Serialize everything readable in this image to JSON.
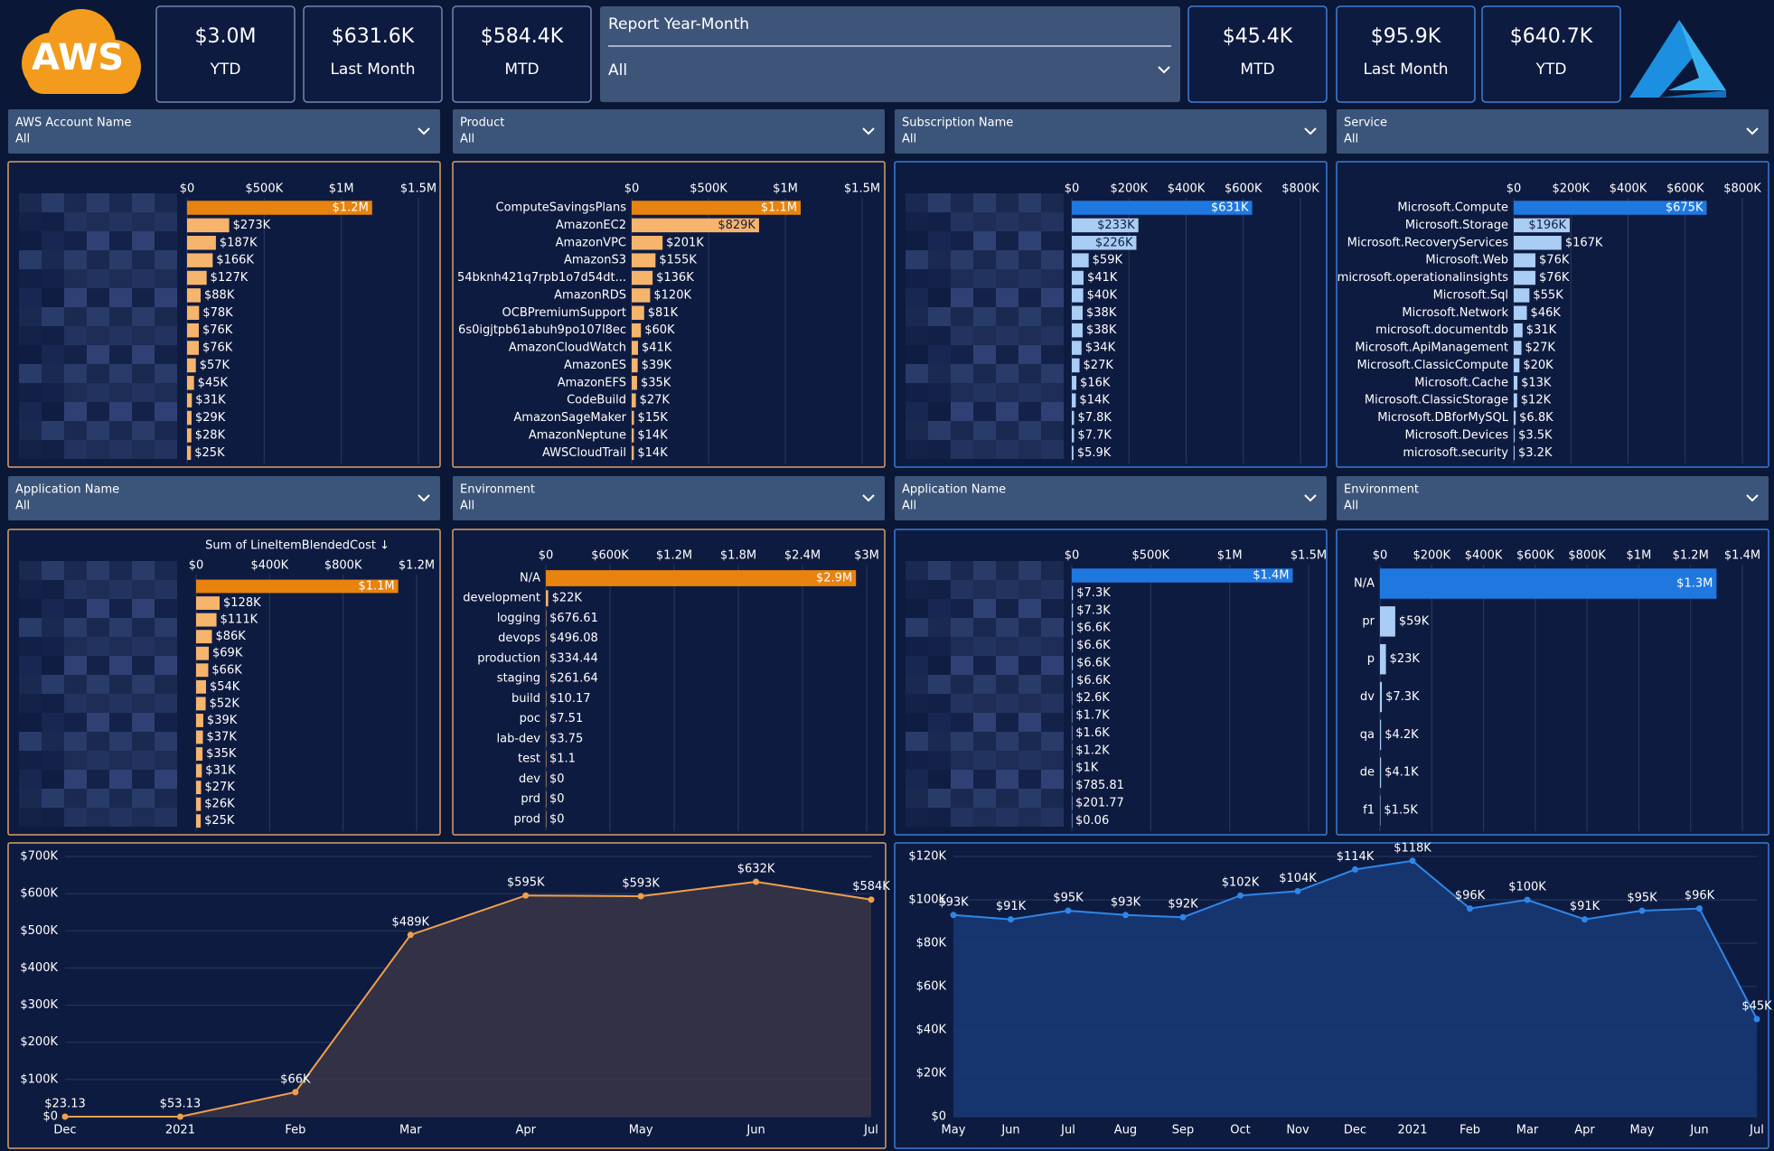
{
  "logo_text": "AWS",
  "aws_kpis": [
    {
      "value": "$3.0M",
      "label": "YTD"
    },
    {
      "value": "$631.6K",
      "label": "Last Month"
    },
    {
      "value": "$584.4K",
      "label": "MTD"
    }
  ],
  "report_filter": {
    "label": "Report Year-Month",
    "value": "All"
  },
  "azure_kpis": [
    {
      "value": "$45.4K",
      "label": "MTD"
    },
    {
      "value": "$95.9K",
      "label": "Last Month"
    },
    {
      "value": "$640.7K",
      "label": "YTD"
    }
  ],
  "slicers": [
    {
      "label": "AWS Account Name",
      "value": "All"
    },
    {
      "label": "Product",
      "value": "All"
    },
    {
      "label": "Subscription Name",
      "value": "All"
    },
    {
      "label": "Service",
      "value": "All"
    },
    {
      "label": "Application Name",
      "value": "All"
    },
    {
      "label": "Environment",
      "value": "All"
    },
    {
      "label": "Application Name",
      "value": "All"
    },
    {
      "label": "Environment",
      "value": "All"
    }
  ],
  "chart_data": [
    {
      "type": "bar",
      "horizontal": true,
      "grid": true,
      "color": "#f6b46c",
      "highlight_color": "#e8830f",
      "categories": [
        null,
        null,
        null,
        null,
        null,
        null,
        null,
        null,
        null,
        null,
        null,
        null,
        null,
        null,
        null
      ],
      "values": [
        1200000,
        273000,
        187000,
        166000,
        127000,
        88000,
        78000,
        76000,
        76000,
        57000,
        45000,
        31000,
        29000,
        28000,
        25000
      ],
      "value_labels": [
        "$1.2M",
        "$273K",
        "$187K",
        "$166K",
        "$127K",
        "$88K",
        "$78K",
        "$76K",
        "$76K",
        "$57K",
        "$45K",
        "$31K",
        "$29K",
        "$28K",
        "$25K"
      ],
      "xlim": [
        0,
        1500000
      ],
      "xticks": [
        {
          "value": 0,
          "label": "$0"
        },
        {
          "value": 500000,
          "label": "$500K"
        },
        {
          "value": 1000000,
          "label": "$1M"
        },
        {
          "value": 1500000,
          "label": "$1.5M"
        }
      ]
    },
    {
      "type": "bar",
      "horizontal": true,
      "grid": true,
      "color": "#f6b46c",
      "highlight_color": "#e8830f",
      "categories": [
        "ComputeSavingsPlans",
        "AmazonEC2",
        "AmazonVPC",
        "AmazonS3",
        "54bknh421q7rpb1o7d54dt...",
        "AmazonRDS",
        "OCBPremiumSupport",
        "6s0igjtpb61abuh9po107l8ec",
        "AmazonCloudWatch",
        "AmazonES",
        "AmazonEFS",
        "CodeBuild",
        "AmazonSageMaker",
        "AmazonNeptune",
        "AWSCloudTrail"
      ],
      "values": [
        1100000,
        829000,
        201000,
        155000,
        136000,
        120000,
        81000,
        60000,
        41000,
        39000,
        35000,
        27000,
        15000,
        14000,
        14000
      ],
      "value_labels": [
        "$1.1M",
        "$829K",
        "$201K",
        "$155K",
        "$136K",
        "$120K",
        "$81K",
        "$60K",
        "$41K",
        "$39K",
        "$35K",
        "$27K",
        "$15K",
        "$14K",
        "$14K"
      ],
      "xlim": [
        0,
        1500000
      ],
      "xticks": [
        {
          "value": 0,
          "label": "$0"
        },
        {
          "value": 500000,
          "label": "$500K"
        },
        {
          "value": 1000000,
          "label": "$1M"
        },
        {
          "value": 1500000,
          "label": "$1.5M"
        }
      ]
    },
    {
      "type": "bar",
      "horizontal": true,
      "grid": true,
      "color": "#a9cdf5",
      "highlight_color": "#1f78e0",
      "categories": [
        null,
        null,
        null,
        null,
        null,
        null,
        null,
        null,
        null,
        null,
        null,
        null,
        null,
        null,
        null
      ],
      "values": [
        631000,
        233000,
        226000,
        59000,
        41000,
        40000,
        38000,
        38000,
        34000,
        27000,
        16000,
        14000,
        7800,
        7700,
        5900
      ],
      "value_labels": [
        "$631K",
        "$233K",
        "$226K",
        "$59K",
        "$41K",
        "$40K",
        "$38K",
        "$38K",
        "$34K",
        "$27K",
        "$16K",
        "$14K",
        "$7.8K",
        "$7.7K",
        "$5.9K"
      ],
      "xlim": [
        0,
        800000
      ],
      "xticks": [
        {
          "value": 0,
          "label": "$0"
        },
        {
          "value": 200000,
          "label": "$200K"
        },
        {
          "value": 400000,
          "label": "$400K"
        },
        {
          "value": 600000,
          "label": "$600K"
        },
        {
          "value": 800000,
          "label": "$800K"
        }
      ]
    },
    {
      "type": "bar",
      "horizontal": true,
      "grid": true,
      "color": "#a9cdf5",
      "highlight_color": "#1f78e0",
      "categories": [
        "Microsoft.Compute",
        "Microsoft.Storage",
        "Microsoft.RecoveryServices",
        "Microsoft.Web",
        "microsoft.operationalinsights",
        "Microsoft.Sql",
        "Microsoft.Network",
        "microsoft.documentdb",
        "Microsoft.ApiManagement",
        "Microsoft.ClassicCompute",
        "Microsoft.Cache",
        "Microsoft.ClassicStorage",
        "Microsoft.DBforMySQL",
        "Microsoft.Devices",
        "microsoft.security"
      ],
      "values": [
        675000,
        196000,
        167000,
        76000,
        76000,
        55000,
        46000,
        31000,
        27000,
        20000,
        13000,
        12000,
        6800,
        3500,
        3200
      ],
      "value_labels": [
        "$675K",
        "$196K",
        "$167K",
        "$76K",
        "$76K",
        "$55K",
        "$46K",
        "$31K",
        "$27K",
        "$20K",
        "$13K",
        "$12K",
        "$6.8K",
        "$3.5K",
        "$3.2K"
      ],
      "xlim": [
        0,
        800000
      ],
      "xticks": [
        {
          "value": 0,
          "label": "$0"
        },
        {
          "value": 200000,
          "label": "$200K"
        },
        {
          "value": 400000,
          "label": "$400K"
        },
        {
          "value": 600000,
          "label": "$600K"
        },
        {
          "value": 800000,
          "label": "$800K"
        }
      ]
    },
    {
      "type": "bar",
      "horizontal": true,
      "grid": true,
      "color": "#f6b46c",
      "highlight_color": "#e8830f",
      "title": "Sum of LineItemBlendedCost ↓",
      "categories": [
        null,
        null,
        null,
        null,
        null,
        null,
        null,
        null,
        null,
        null,
        null,
        null,
        null,
        null,
        null
      ],
      "values": [
        1100000,
        128000,
        111000,
        86000,
        69000,
        66000,
        54000,
        52000,
        39000,
        37000,
        35000,
        31000,
        27000,
        26000,
        25000
      ],
      "value_labels": [
        "$1.1M",
        "$128K",
        "$111K",
        "$86K",
        "$69K",
        "$66K",
        "$54K",
        "$52K",
        "$39K",
        "$37K",
        "$35K",
        "$31K",
        "$27K",
        "$26K",
        "$25K"
      ],
      "xlim": [
        0,
        1200000
      ],
      "xticks": [
        {
          "value": 0,
          "label": "$0"
        },
        {
          "value": 400000,
          "label": "$400K"
        },
        {
          "value": 800000,
          "label": "$800K"
        },
        {
          "value": 1200000,
          "label": "$1.2M"
        }
      ]
    },
    {
      "type": "bar",
      "horizontal": true,
      "grid": true,
      "color": "#f6b46c",
      "highlight_color": "#e8830f",
      "categories": [
        "N/A",
        "development",
        "logging",
        "devops",
        "production",
        "staging",
        "build",
        "poc",
        "lab-dev",
        "test",
        "dev",
        "prd",
        "prod"
      ],
      "values": [
        2900000,
        22000,
        676.61,
        496.08,
        334.44,
        261.64,
        10.17,
        7.51,
        3.75,
        1.1,
        0,
        0,
        0
      ],
      "value_labels": [
        "$2.9M",
        "$22K",
        "$676.61",
        "$496.08",
        "$334.44",
        "$261.64",
        "$10.17",
        "$7.51",
        "$3.75",
        "$1.1",
        "$0",
        "$0",
        "$0"
      ],
      "xlim": [
        0,
        3000000
      ],
      "xticks": [
        {
          "value": 0,
          "label": "$0"
        },
        {
          "value": 600000,
          "label": "$600K"
        },
        {
          "value": 1200000,
          "label": "$1.2M"
        },
        {
          "value": 1800000,
          "label": "$1.8M"
        },
        {
          "value": 2400000,
          "label": "$2.4M"
        },
        {
          "value": 3000000,
          "label": "$3M"
        }
      ]
    },
    {
      "type": "bar",
      "horizontal": true,
      "grid": true,
      "color": "#a9cdf5",
      "highlight_color": "#1f78e0",
      "categories": [
        null,
        null,
        null,
        null,
        null,
        null,
        null,
        null,
        null,
        null,
        null,
        null,
        null,
        null,
        null
      ],
      "values": [
        1400000,
        7300,
        7300,
        6600,
        6600,
        6600,
        6600,
        2600,
        1700,
        1600,
        1200,
        1000,
        785.81,
        201.77,
        0.06
      ],
      "value_labels": [
        "$1.4M",
        "$7.3K",
        "$7.3K",
        "$6.6K",
        "$6.6K",
        "$6.6K",
        "$6.6K",
        "$2.6K",
        "$1.7K",
        "$1.6K",
        "$1.2K",
        "$1K",
        "$785.81",
        "$201.77",
        "$0.06"
      ],
      "xlim": [
        0,
        1500000
      ],
      "xticks": [
        {
          "value": 0,
          "label": "$0"
        },
        {
          "value": 500000,
          "label": "$500K"
        },
        {
          "value": 1000000,
          "label": "$1M"
        },
        {
          "value": 1500000,
          "label": "$1.5M"
        }
      ]
    },
    {
      "type": "bar",
      "horizontal": true,
      "grid": true,
      "color": "#a9cdf5",
      "highlight_color": "#1f78e0",
      "categories": [
        "N/A",
        "pr",
        "p",
        "dv",
        "qa",
        "de",
        "f1"
      ],
      "values": [
        1300000,
        59000,
        23000,
        7300,
        4200,
        4100,
        1500
      ],
      "value_labels": [
        "$1.3M",
        "$59K",
        "$23K",
        "$7.3K",
        "$4.2K",
        "$4.1K",
        "$1.5K"
      ],
      "xlim": [
        0,
        1400000
      ],
      "xticks": [
        {
          "value": 0,
          "label": "$0"
        },
        {
          "value": 200000,
          "label": "$200K"
        },
        {
          "value": 400000,
          "label": "$400K"
        },
        {
          "value": 600000,
          "label": "$600K"
        },
        {
          "value": 800000,
          "label": "$800K"
        },
        {
          "value": 1000000,
          "label": "$1M"
        },
        {
          "value": 1200000,
          "label": "$1.2M"
        },
        {
          "value": 1400000,
          "label": "$1.4M"
        }
      ]
    },
    {
      "type": "line",
      "grid": true,
      "color": "#f0a04b",
      "fill": "#3a3547",
      "categories": [
        "Dec",
        "2021",
        "Feb",
        "Mar",
        "Apr",
        "May",
        "Jun",
        "Jul"
      ],
      "values": [
        23.13,
        53.13,
        66000,
        489000,
        595000,
        593000,
        632000,
        584000
      ],
      "value_labels": [
        "$23.13",
        "$53.13",
        "$66K",
        "$489K",
        "$595K",
        "$593K",
        "$632K",
        "$584K"
      ],
      "ylim": [
        0,
        700000
      ],
      "yticks": [
        {
          "value": 0,
          "label": "$0"
        },
        {
          "value": 100000,
          "label": "$100K"
        },
        {
          "value": 200000,
          "label": "$200K"
        },
        {
          "value": 300000,
          "label": "$300K"
        },
        {
          "value": 400000,
          "label": "$400K"
        },
        {
          "value": 500000,
          "label": "$500K"
        },
        {
          "value": 600000,
          "label": "$600K"
        },
        {
          "value": 700000,
          "label": "$700K"
        }
      ]
    },
    {
      "type": "line",
      "grid": true,
      "color": "#2f86e8",
      "fill": "#183a78",
      "categories": [
        "May",
        "Jun",
        "Jul",
        "Aug",
        "Sep",
        "Oct",
        "Nov",
        "Dec",
        "2021",
        "Feb",
        "Mar",
        "Apr",
        "May",
        "Jun",
        "Jul"
      ],
      "values": [
        93000,
        91000,
        95000,
        93000,
        92000,
        102000,
        104000,
        114000,
        118000,
        96000,
        100000,
        91000,
        95000,
        96000,
        45000
      ],
      "value_labels": [
        "$93K",
        "$91K",
        "$95K",
        "$93K",
        "$92K",
        "$102K",
        "$104K",
        "$114K",
        "$118K",
        "$96K",
        "$100K",
        "$91K",
        "$95K",
        "$96K",
        "$45K"
      ],
      "ylim": [
        0,
        120000
      ],
      "yticks": [
        {
          "value": 0,
          "label": "$0"
        },
        {
          "value": 20000,
          "label": "$20K"
        },
        {
          "value": 40000,
          "label": "$40K"
        },
        {
          "value": 60000,
          "label": "$60K"
        },
        {
          "value": 80000,
          "label": "$80K"
        },
        {
          "value": 100000,
          "label": "$100K"
        },
        {
          "value": 120000,
          "label": "$120K"
        }
      ]
    }
  ]
}
